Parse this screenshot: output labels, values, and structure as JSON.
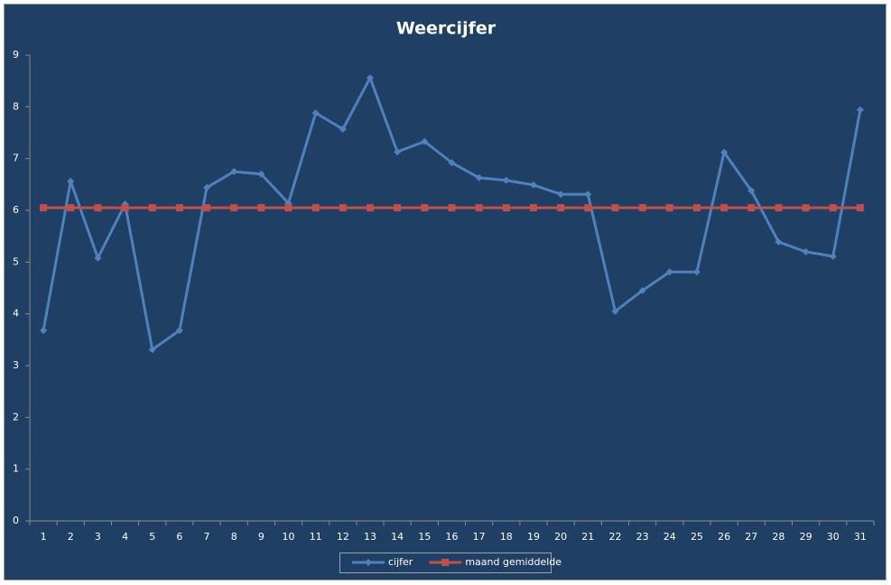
{
  "chart_data": {
    "type": "line",
    "title": "Weercijfer",
    "categories": [
      "1",
      "2",
      "3",
      "4",
      "5",
      "6",
      "7",
      "8",
      "9",
      "10",
      "11",
      "12",
      "13",
      "14",
      "15",
      "16",
      "17",
      "18",
      "19",
      "20",
      "21",
      "22",
      "23",
      "24",
      "25",
      "26",
      "27",
      "28",
      "29",
      "30",
      "31"
    ],
    "series": [
      {
        "name": "cijfer",
        "color": "#4f81bd",
        "marker": "diamond",
        "values": [
          3.68,
          6.56,
          5.08,
          6.12,
          3.31,
          3.68,
          6.44,
          6.75,
          6.7,
          6.14,
          7.88,
          7.57,
          8.56,
          7.13,
          7.33,
          6.92,
          6.63,
          6.58,
          6.49,
          6.31,
          6.31,
          4.05,
          4.45,
          4.81,
          4.81,
          7.12,
          6.38,
          5.39,
          5.2,
          5.11,
          7.94
        ]
      },
      {
        "name": "maand gemiddelde",
        "color": "#c0504d",
        "marker": "square",
        "values": [
          6.05,
          6.05,
          6.05,
          6.05,
          6.05,
          6.05,
          6.05,
          6.05,
          6.05,
          6.05,
          6.05,
          6.05,
          6.05,
          6.05,
          6.05,
          6.05,
          6.05,
          6.05,
          6.05,
          6.05,
          6.05,
          6.05,
          6.05,
          6.05,
          6.05,
          6.05,
          6.05,
          6.05,
          6.05,
          6.05,
          6.05
        ]
      }
    ],
    "ylim": [
      0,
      9
    ],
    "yticks": [
      0,
      1,
      2,
      3,
      4,
      5,
      6,
      7,
      8,
      9
    ],
    "grid": false,
    "legend": "bottom"
  }
}
